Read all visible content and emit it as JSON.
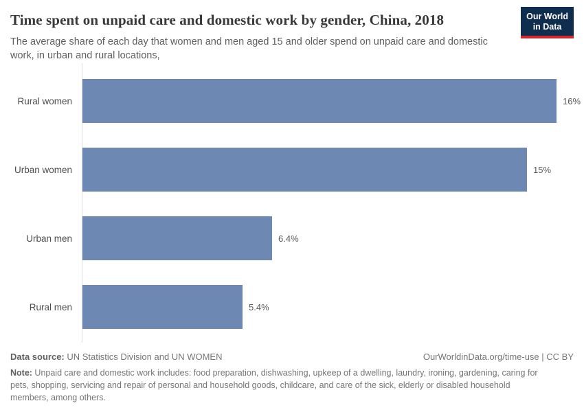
{
  "header": {
    "logo": {
      "line1": "Our World",
      "line2": "in Data",
      "bg_color": "#0F2D4E",
      "accent_color": "#D0262C"
    }
  },
  "chart_data": {
    "type": "bar",
    "orientation": "horizontal",
    "title": "Time spent on unpaid care and domestic work by gender, China, 2018",
    "subtitle": "The average share of each day that women and men aged 15 and older spend on unpaid care and domestic work, in urban and rural locations,",
    "categories": [
      "Rural women",
      "Urban women",
      "Urban men",
      "Rural men"
    ],
    "values": [
      16,
      15,
      6.4,
      5.4
    ],
    "value_labels": [
      "16%",
      "15%",
      "6.4%",
      "5.4%"
    ],
    "unit": "% of each day",
    "xlim": [
      0,
      16.9
    ],
    "grid": false,
    "legend": "none",
    "bar_color": "#6C88B3"
  },
  "footer": {
    "datasource_label": "Data source:",
    "datasource_text": " UN Statistics Division and UN WOMEN",
    "attribution": "OurWorldinData.org/time-use | CC BY",
    "note_label": "Note:",
    "note_text": " Unpaid care and domestic work includes: food preparation, dishwashing, upkeep of a dwelling, laundry, ironing, gardening, caring for pets, shopping, servicing and repair of personal and household goods, childcare, and care of the sick, elderly or disabled household members, among others."
  },
  "colors": {
    "bar": "#6C88B3",
    "axis_line": "#DDDDDD",
    "title_text": "#383838",
    "subtitle_text": "#5F5F5F",
    "muted_text": "#757575"
  }
}
